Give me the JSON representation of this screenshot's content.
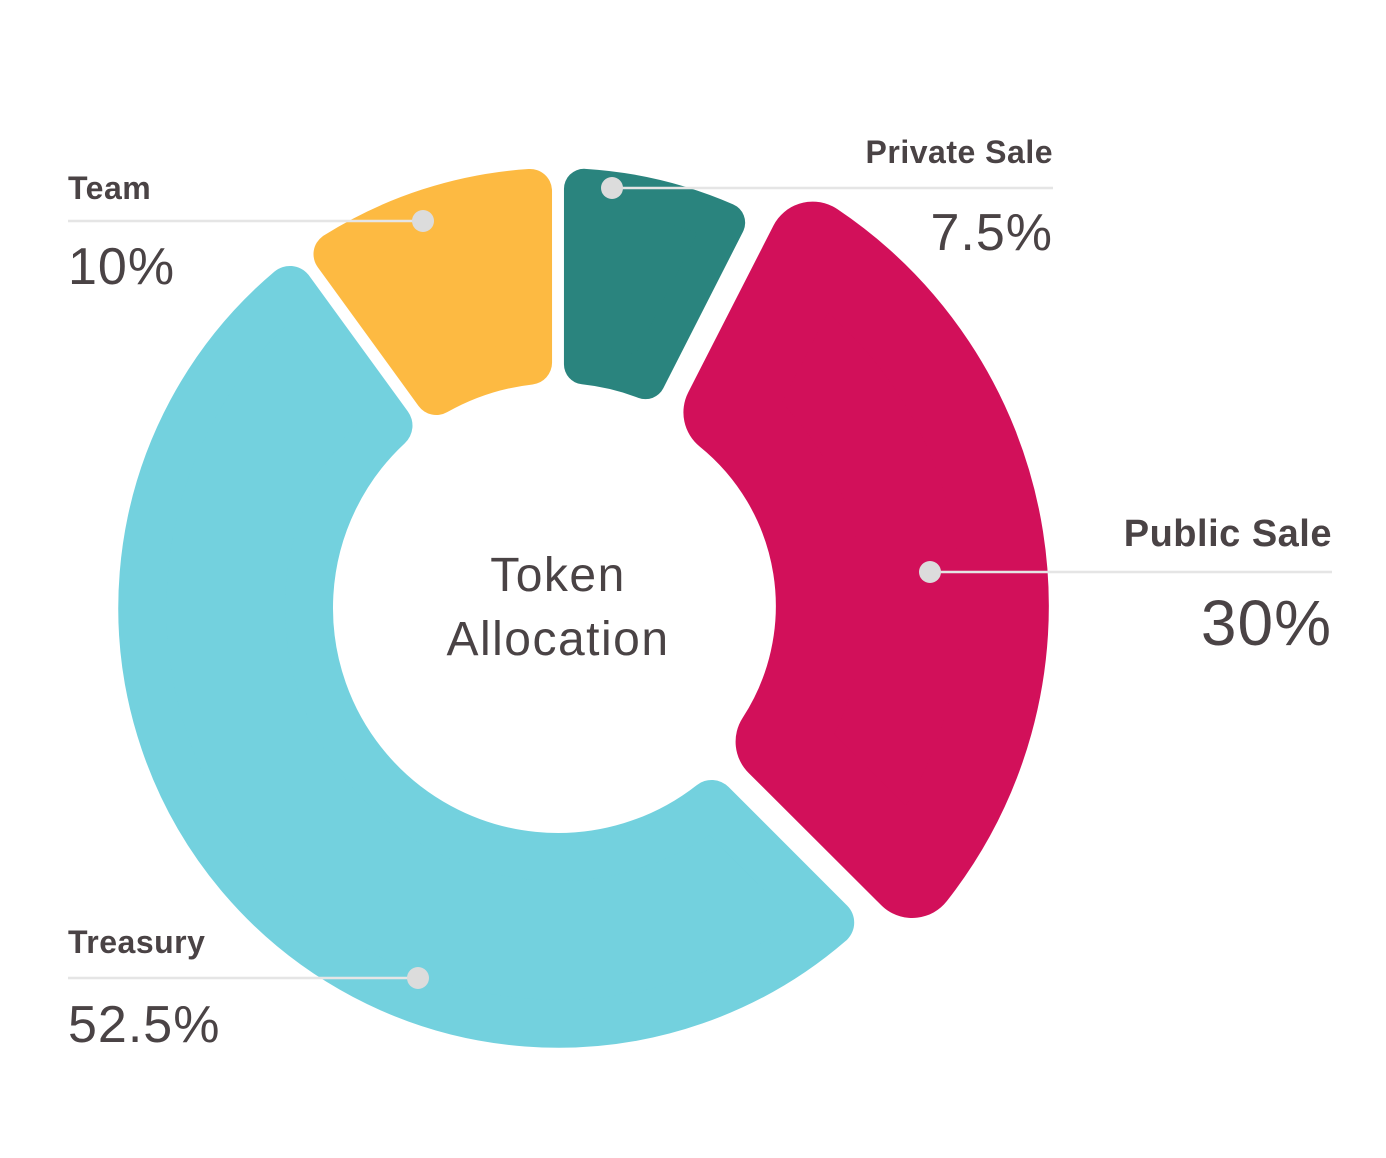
{
  "chart_data": {
    "type": "pie",
    "variant": "donut",
    "title": "Token Allocation",
    "categories": [
      "Private Sale",
      "Public Sale",
      "Treasury",
      "Team"
    ],
    "values": [
      7.5,
      30,
      52.5,
      10
    ],
    "unit": "%",
    "colors": [
      "#2A847E",
      "#D2105A",
      "#73D1DE",
      "#FDBA42"
    ],
    "start_angle_deg": 0,
    "direction": "clockwise",
    "emphasized_slice": "Public Sale",
    "legend_position": "callouts"
  },
  "center": {
    "line1": "Token",
    "line2": "Allocation"
  },
  "segments": [
    {
      "id": "private-sale",
      "label": "Private Sale",
      "value": "7.5%",
      "pct": 7.5,
      "color": "#2A847E"
    },
    {
      "id": "public-sale",
      "label": "Public Sale",
      "value": "30%",
      "pct": 30,
      "color": "#D2105A"
    },
    {
      "id": "treasury",
      "label": "Treasury",
      "value": "52.5%",
      "pct": 52.5,
      "color": "#73D1DE"
    },
    {
      "id": "team",
      "label": "Team",
      "value": "10%",
      "pct": 10,
      "color": "#FDBA42"
    }
  ],
  "palette": {
    "text": "#4A4345",
    "leader_line": "#E5E5E5",
    "leader_dot": "#DCDCDC",
    "background": "#FFFFFF"
  }
}
